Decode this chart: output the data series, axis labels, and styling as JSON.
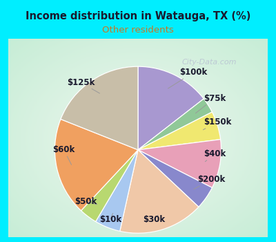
{
  "title": "Income distribution in Watauga, TX (%)",
  "subtitle": "Other residents",
  "title_color": "#1a1a2e",
  "subtitle_color": "#cc7722",
  "background_outer": "#00eeff",
  "background_inner_color1": "#c8ecd4",
  "background_inner_color2": "#e8f5ee",
  "labels": [
    "$100k",
    "$75k",
    "$150k",
    "$40k",
    "$200k",
    "$30k",
    "$10k",
    "$50k",
    "$60k",
    "$125k"
  ],
  "sizes": [
    14.5,
    3.0,
    5.5,
    9.5,
    4.5,
    16.5,
    5.0,
    3.5,
    19.0,
    19.0
  ],
  "colors": [
    "#a898d0",
    "#90c898",
    "#f0e870",
    "#e8a0b8",
    "#8888cc",
    "#f0c8a8",
    "#a8c8f0",
    "#b8d870",
    "#f0a060",
    "#c8bea8"
  ],
  "label_fontsize": 8.5,
  "watermark": "City-Data.com"
}
